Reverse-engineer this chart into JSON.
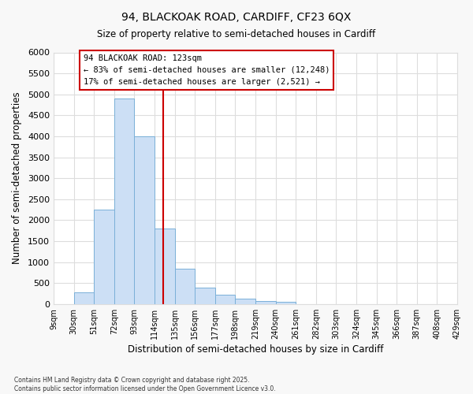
{
  "title_line1": "94, BLACKOAK ROAD, CARDIFF, CF23 6QX",
  "title_line2": "Size of property relative to semi-detached houses in Cardiff",
  "xlabel": "Distribution of semi-detached houses by size in Cardiff",
  "ylabel": "Number of semi-detached properties",
  "bar_edges": [
    9,
    30,
    51,
    72,
    93,
    114,
    135,
    156,
    177,
    198,
    219,
    240,
    261,
    282,
    303,
    324,
    345,
    366,
    387,
    408,
    429
  ],
  "bar_heights": [
    5,
    280,
    2250,
    4900,
    4000,
    1800,
    850,
    400,
    220,
    120,
    75,
    50,
    0,
    0,
    0,
    0,
    0,
    0,
    0,
    0
  ],
  "bar_color": "#ccdff5",
  "bar_edgecolor": "#7ab0d8",
  "property_value": 123,
  "vline_color": "#cc0000",
  "annotation_text": "94 BLACKOAK ROAD: 123sqm\n← 83% of semi-detached houses are smaller (12,248)\n17% of semi-detached houses are larger (2,521) →",
  "annotation_box_facecolor": "#ffffff",
  "annotation_box_edgecolor": "#cc0000",
  "ylim": [
    0,
    6000
  ],
  "yticks": [
    0,
    500,
    1000,
    1500,
    2000,
    2500,
    3000,
    3500,
    4000,
    4500,
    5000,
    5500,
    6000
  ],
  "tick_labels": [
    "9sqm",
    "30sqm",
    "51sqm",
    "72sqm",
    "93sqm",
    "114sqm",
    "135sqm",
    "156sqm",
    "177sqm",
    "198sqm",
    "219sqm",
    "240sqm",
    "261sqm",
    "282sqm",
    "303sqm",
    "324sqm",
    "345sqm",
    "366sqm",
    "387sqm",
    "408sqm",
    "429sqm"
  ],
  "footnote": "Contains HM Land Registry data © Crown copyright and database right 2025.\nContains public sector information licensed under the Open Government Licence v3.0.",
  "fig_bg_color": "#f8f8f8",
  "plot_bg_color": "#ffffff",
  "grid_color": "#dddddd"
}
